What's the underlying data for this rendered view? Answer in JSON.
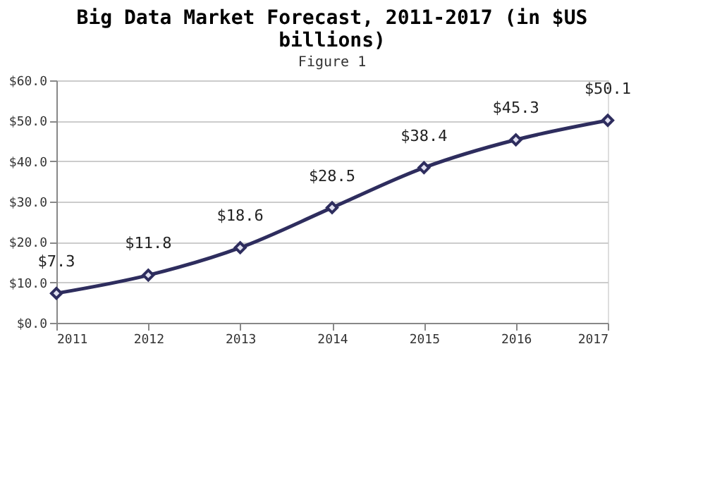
{
  "chart_data": {
    "type": "line",
    "title": "Big Data Market Forecast, 2011-2017 (in $US billions)",
    "categories": [
      "2011",
      "2012",
      "2013",
      "2014",
      "2015",
      "2016",
      "2017"
    ],
    "values": [
      7.3,
      11.8,
      18.6,
      28.5,
      38.4,
      45.3,
      50.1
    ],
    "value_labels": [
      "$7.3",
      "$11.8",
      "$18.6",
      "$28.5",
      "$38.4",
      "$45.3",
      "$50.1"
    ],
    "color": "#2e2d5e",
    "marker": "diamond",
    "grid": "y",
    "ylim": [
      0,
      60
    ],
    "yticks": [
      {
        "value": 0,
        "label": "$0.0"
      },
      {
        "value": 10,
        "label": "$10.0"
      },
      {
        "value": 20,
        "label": "$20.0"
      },
      {
        "value": 30,
        "label": "$30.0"
      },
      {
        "value": 40,
        "label": "$40.0"
      },
      {
        "value": 50,
        "label": "$50.0"
      },
      {
        "value": 60,
        "label": "$60.0"
      }
    ],
    "annotations": [
      "Figure 1"
    ]
  }
}
